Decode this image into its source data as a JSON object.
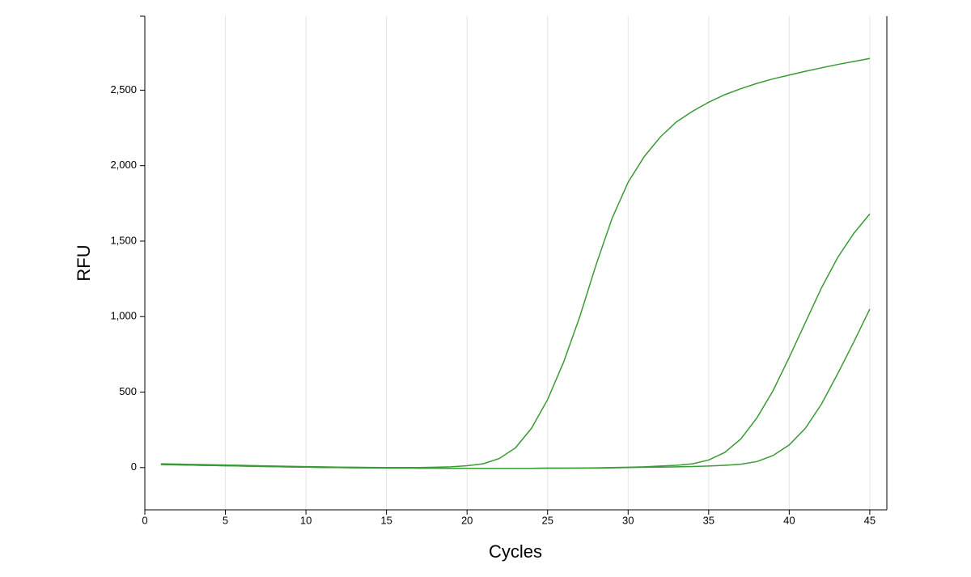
{
  "chart_data": {
    "type": "line",
    "xlabel": "Cycles",
    "ylabel": "RFU",
    "x": [
      1,
      2,
      3,
      4,
      5,
      6,
      7,
      8,
      9,
      10,
      11,
      12,
      13,
      14,
      15,
      16,
      17,
      18,
      19,
      20,
      21,
      22,
      23,
      24,
      25,
      26,
      27,
      28,
      29,
      30,
      31,
      32,
      33,
      34,
      35,
      36,
      37,
      38,
      39,
      40,
      41,
      42,
      43,
      44,
      45
    ],
    "series": [
      {
        "color": "#3a9a35",
        "values": [
          25,
          23,
          21,
          19,
          17,
          15,
          12,
          10,
          8,
          6,
          5,
          3,
          2,
          1,
          0,
          0,
          0,
          2,
          5,
          12,
          25,
          60,
          130,
          260,
          450,
          700,
          1000,
          1340,
          1650,
          1890,
          2060,
          2190,
          2290,
          2360,
          2420,
          2470,
          2510,
          2545,
          2575,
          2600,
          2625,
          2648,
          2670,
          2690,
          2710
        ]
      },
      {
        "color": "#3a9a35",
        "values": [
          20,
          18,
          16,
          14,
          12,
          10,
          8,
          6,
          4,
          3,
          1,
          0,
          -1,
          -2,
          -3,
          -3,
          -4,
          -4,
          -5,
          -5,
          -5,
          -5,
          -5,
          -5,
          -4,
          -4,
          -3,
          -2,
          0,
          2,
          5,
          10,
          15,
          25,
          50,
          100,
          190,
          330,
          510,
          730,
          960,
          1190,
          1390,
          1550,
          1680
        ]
      },
      {
        "color": "#3a9a35",
        "values": [
          20,
          18,
          16,
          14,
          12,
          10,
          8,
          6,
          4,
          3,
          1,
          0,
          -1,
          -2,
          -3,
          -3,
          -4,
          -4,
          -5,
          -5,
          -5,
          -5,
          -5,
          -5,
          -4,
          -4,
          -4,
          -3,
          -2,
          0,
          2,
          3,
          5,
          7,
          10,
          15,
          22,
          40,
          80,
          150,
          260,
          420,
          620,
          830,
          1050
        ]
      }
    ],
    "xlim": [
      0,
      46.06
    ],
    "ylim": [
      -280,
      2990
    ],
    "xticks": [
      0,
      5,
      10,
      15,
      20,
      25,
      30,
      35,
      40,
      45
    ],
    "yticks": [
      0,
      500,
      {
        "value": 1000,
        "label": "1,000"
      },
      {
        "value": 1500,
        "label": "1,500"
      },
      {
        "value": 2000,
        "label": "2,000"
      },
      {
        "value": 2500,
        "label": "2,500"
      }
    ],
    "grid": "x"
  }
}
